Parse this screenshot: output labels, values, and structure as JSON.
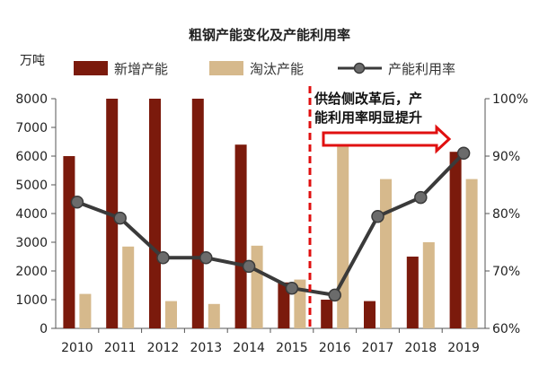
{
  "chart_data": {
    "type": "bar",
    "title": "粗钢产能变化及产能利用率",
    "left_axis_unit": "万吨",
    "categories": [
      "2010",
      "2011",
      "2012",
      "2013",
      "2014",
      "2015",
      "2016",
      "2017",
      "2018",
      "2019"
    ],
    "series": [
      {
        "name": "新增产能",
        "type": "bar",
        "axis": "left",
        "color": "#7b1a0c",
        "values": [
          6000,
          8000,
          8000,
          8000,
          6400,
          1600,
          1000,
          950,
          2500,
          6150
        ]
      },
      {
        "name": "淘汰产能",
        "type": "bar",
        "axis": "left",
        "color": "#d6b98c",
        "values": [
          1200,
          2850,
          950,
          850,
          2880,
          1700,
          6500,
          5200,
          3000,
          5200
        ]
      },
      {
        "name": "产能利用率",
        "type": "line",
        "axis": "right",
        "unit": "%",
        "color": "#3a3a3a",
        "values": [
          82,
          79.2,
          72.3,
          72.3,
          70.8,
          67,
          65.8,
          79.5,
          82.8,
          90.5
        ]
      }
    ],
    "left_axis": {
      "min": 0,
      "max": 8000,
      "ticks": [
        0,
        1000,
        2000,
        3000,
        4000,
        5000,
        6000,
        7000,
        8000
      ]
    },
    "right_axis": {
      "min": 60,
      "max": 100,
      "ticks": [
        "60%",
        "70%",
        "80%",
        "90%",
        "100%"
      ]
    },
    "annotation": {
      "lines": [
        "供给侧改革后，产",
        "能利用率明显提升"
      ],
      "divider_between": [
        "2015",
        "2016"
      ]
    },
    "legend_position": "top",
    "grid": false
  }
}
